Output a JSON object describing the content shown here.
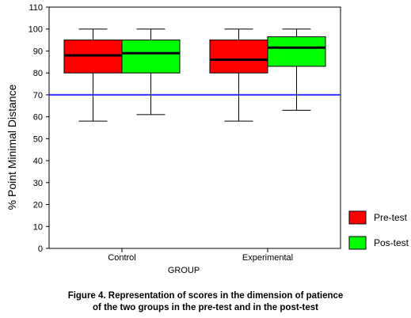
{
  "chart_data": {
    "type": "boxplot",
    "ylabel": "% Point Minimal Distance",
    "xlabel": "GROUP",
    "ylim": [
      0,
      110
    ],
    "yticks": [
      0,
      10,
      20,
      30,
      40,
      50,
      60,
      70,
      80,
      90,
      100,
      110
    ],
    "categories": [
      "Control",
      "Experimental"
    ],
    "reference_line": {
      "y": 70,
      "color": "#3333ff"
    },
    "legend_position": "right",
    "series": [
      {
        "name": "Pre-test",
        "color": "#ff0000",
        "boxes": [
          {
            "min": 58,
            "q1": 80,
            "median": 88,
            "q3": 95,
            "max": 100
          },
          {
            "min": 58,
            "q1": 80,
            "median": 86,
            "q3": 95,
            "max": 100
          }
        ]
      },
      {
        "name": "Pos-test",
        "color": "#00ff00",
        "boxes": [
          {
            "min": 61,
            "q1": 80,
            "median": 89,
            "q3": 95,
            "max": 100
          },
          {
            "min": 63,
            "q1": 83,
            "median": 91.5,
            "q3": 96.5,
            "max": 100
          }
        ]
      }
    ]
  },
  "caption": {
    "line1": "Figure 4. Representation of scores in the dimension of patience",
    "line2": "of the two groups in the pre-test and in the post-test"
  }
}
